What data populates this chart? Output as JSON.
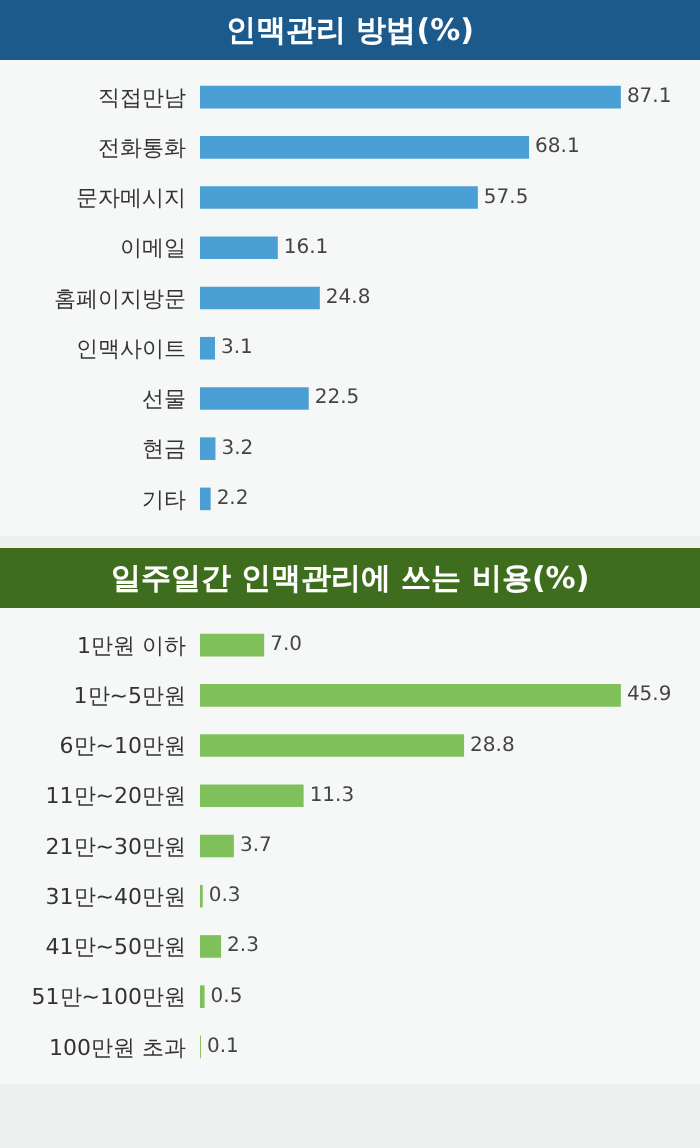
{
  "chart_data": [
    {
      "type": "bar",
      "title": "인맥관리 방법(%)",
      "orientation": "horizontal",
      "data_labels": true,
      "tick_labels": "y",
      "color": "#4a9fd4",
      "categories": [
        "직접만남",
        "전화통화",
        "문자메시지",
        "이메일",
        "홈페이지방문",
        "인맥사이트",
        "선물",
        "현금",
        "기타"
      ],
      "values": [
        87.1,
        68.1,
        57.5,
        16.1,
        24.8,
        3.1,
        22.5,
        3.2,
        2.2
      ]
    },
    {
      "type": "bar",
      "title": "일주일간 인맥관리에 쓰는 비용(%)",
      "orientation": "horizontal",
      "tick_labels": "y",
      "color": "#80c05a",
      "value_labels": [
        "7.0",
        "45.9",
        "28.8",
        "11.3",
        "3.7",
        "0.3",
        "2.3",
        "0.5",
        "0.1"
      ],
      "categories": [
        "1만원 이하",
        "1만~5만원",
        "6만~10만원",
        "11만~20만원",
        "21만~30만원",
        "31만~40만원",
        "41만~50만원",
        "51만~100만원",
        "100만원 초과"
      ],
      "values": [
        7.0,
        45.9,
        28.8,
        11.3,
        3.7,
        0.3,
        2.3,
        0.5,
        0.1
      ]
    }
  ]
}
